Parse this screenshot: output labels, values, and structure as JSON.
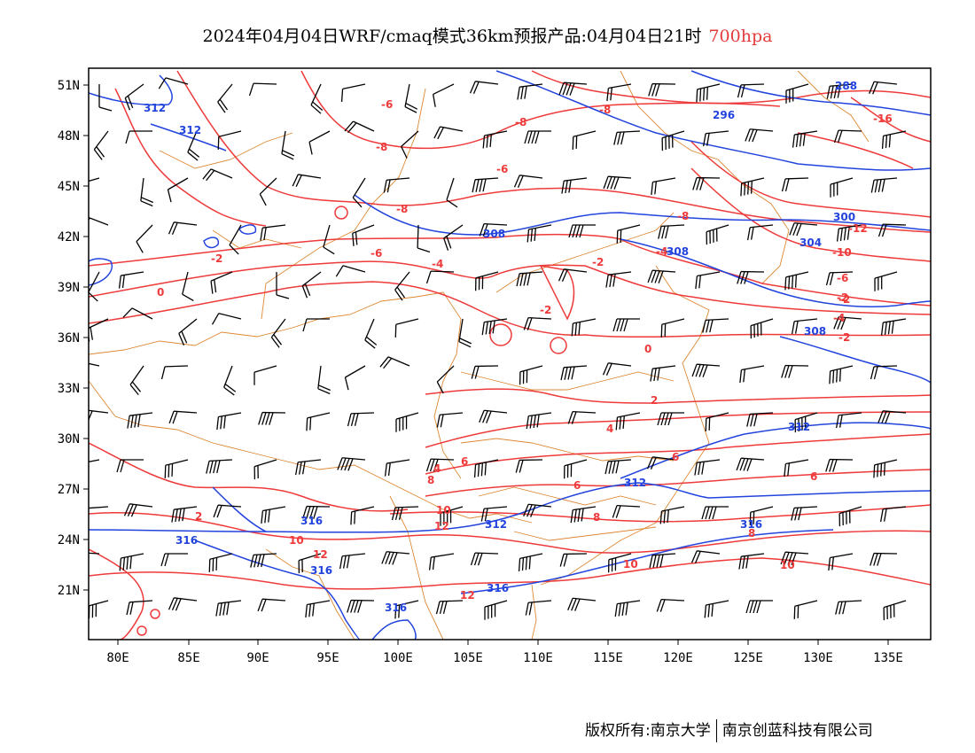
{
  "title": {
    "main": "2024年04月04日WRF/cmaq模式36km预报产品:04月04日21时",
    "level": "700hpa",
    "level_color": "#ee3a3a"
  },
  "footer": {
    "copyright": "版权所有:南京大学",
    "company": "南京创蓝科技有限公司"
  },
  "axes": {
    "lat_labels": [
      "51N",
      "48N",
      "45N",
      "42N",
      "39N",
      "36N",
      "33N",
      "30N",
      "27N",
      "24N",
      "21N"
    ],
    "lon_labels": [
      "80E",
      "85E",
      "90E",
      "95E",
      "100E",
      "105E",
      "110E",
      "115E",
      "120E",
      "125E",
      "130E",
      "135E"
    ]
  },
  "colors": {
    "temperature": "#ee3a3a",
    "geopotential": "#2244dd",
    "boundaries": "#dd8833",
    "wind_barbs": "#000000"
  },
  "contour_labels": {
    "temperature": [
      "-6",
      "-8",
      "-8",
      "-6",
      "-8",
      "-8",
      "-16",
      "-12",
      "-10",
      "-8",
      "-6",
      "-4",
      "-2",
      "-2",
      "-6",
      "-2",
      "-4",
      "-4",
      "-2",
      "0",
      "-2",
      "0",
      "-2",
      "2",
      "4",
      "4",
      "6",
      "6",
      "6",
      "8",
      "8",
      "6",
      "8",
      "10",
      "10",
      "10",
      "12",
      "12",
      "12",
      "10",
      "2"
    ],
    "geopotential": [
      "312",
      "312",
      "296",
      "288",
      "300",
      "308",
      "304",
      "308",
      "308",
      "312",
      "312",
      "316",
      "316",
      "316",
      "316",
      "316",
      "312",
      "316"
    ]
  }
}
